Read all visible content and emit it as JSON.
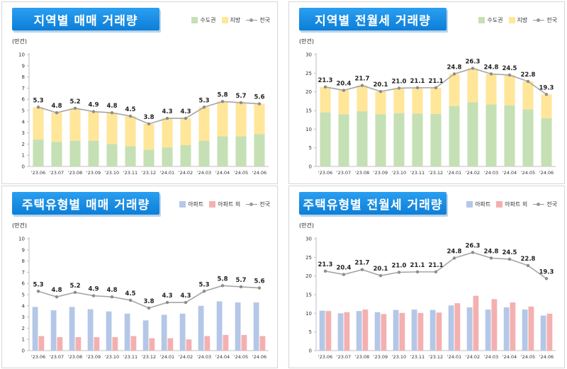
{
  "colors": {
    "metro": "#c5e0b4",
    "region": "#ffe699",
    "apt": "#b4c7e7",
    "nonapt": "#f4b0b0",
    "line": "#a6a6a6"
  },
  "chart_data": [
    {
      "type": "bar",
      "stacked": true,
      "title": "지역별 매매 거래량",
      "unit": "(만건)",
      "categories": [
        "'23.06",
        "'23.07",
        "'23.08",
        "'23.09",
        "'23.10",
        "'23.11",
        "'23.12",
        "'24.01",
        "'24.02",
        "'24.03",
        "'24.04",
        "'24.05",
        "'24.06"
      ],
      "ylim": [
        0,
        10
      ],
      "yticks": [
        "0",
        "1",
        "2",
        "3",
        "4",
        "5",
        "6",
        "7",
        "8",
        "9",
        "10"
      ],
      "series": [
        {
          "name": "수도권",
          "color_key": "metro",
          "values": [
            2.4,
            2.2,
            2.3,
            2.3,
            2.0,
            1.8,
            1.5,
            1.7,
            1.9,
            2.3,
            2.7,
            2.7,
            2.9
          ]
        },
        {
          "name": "지방",
          "color_key": "region",
          "values": [
            2.9,
            2.6,
            2.9,
            2.6,
            2.8,
            2.7,
            2.3,
            2.6,
            2.4,
            3.0,
            3.1,
            3.0,
            2.7
          ]
        }
      ],
      "line": {
        "name": "전국",
        "values": [
          5.3,
          4.8,
          5.2,
          4.9,
          4.8,
          4.5,
          3.8,
          4.3,
          4.3,
          5.3,
          5.8,
          5.7,
          5.6
        ],
        "labels": [
          "5.3",
          "4.8",
          "5.2",
          "4.9",
          "4.8",
          "4.5",
          "3.8",
          "4.3",
          "4.3",
          "5.3",
          "5.8",
          "5.7",
          "5.6"
        ]
      }
    },
    {
      "type": "bar",
      "stacked": true,
      "title": "지역별 전월세 거래량",
      "unit": "(만건)",
      "categories": [
        "'23.06",
        "'23.07",
        "'23.08",
        "'23.09",
        "'23.10",
        "'23.11",
        "'23.12",
        "'24.01",
        "'24.02",
        "'24.03",
        "'24.04",
        "'24.05",
        "'24.06"
      ],
      "ylim": [
        0,
        30
      ],
      "yticks": [
        "0",
        "5",
        "10",
        "15",
        "20",
        "25",
        "30"
      ],
      "series": [
        {
          "name": "수도권",
          "color_key": "metro",
          "values": [
            14.5,
            14.0,
            14.8,
            14.0,
            14.3,
            14.2,
            14.1,
            16.2,
            17.2,
            16.6,
            16.4,
            15.3,
            12.9
          ]
        },
        {
          "name": "지방",
          "color_key": "region",
          "values": [
            6.8,
            6.4,
            6.9,
            6.1,
            6.7,
            6.9,
            7.0,
            8.6,
            9.1,
            8.2,
            8.1,
            7.5,
            6.4
          ]
        }
      ],
      "line": {
        "name": "전국",
        "values": [
          21.3,
          20.4,
          21.7,
          20.1,
          21.0,
          21.1,
          21.1,
          24.8,
          26.3,
          24.8,
          24.5,
          22.8,
          19.3
        ],
        "labels": [
          "21.3",
          "20.4",
          "21.7",
          "20.1",
          "21.0",
          "21.1",
          "21.1",
          "24.8",
          "26.3",
          "24.8",
          "24.5",
          "22.8",
          "19.3"
        ]
      }
    },
    {
      "type": "bar",
      "stacked": false,
      "title": "주택유형별 매매 거래량",
      "unit": "(만건)",
      "categories": [
        "'23.06",
        "'23.07",
        "'23.08",
        "'23.09",
        "'23.10",
        "'23.11",
        "'23.12",
        "'24.01",
        "'24.02",
        "'24.03",
        "'24.04",
        "'24.05",
        "'24.06"
      ],
      "ylim": [
        0,
        10
      ],
      "yticks": [
        "0",
        "1",
        "2",
        "3",
        "4",
        "5",
        "6",
        "7",
        "8",
        "9",
        "10"
      ],
      "series": [
        {
          "name": "아파트",
          "color_key": "apt",
          "values": [
            3.9,
            3.6,
            3.9,
            3.7,
            3.5,
            3.3,
            2.7,
            3.2,
            3.3,
            4.0,
            4.4,
            4.3,
            4.3
          ]
        },
        {
          "name": "아파트 외",
          "color_key": "nonapt",
          "values": [
            1.3,
            1.2,
            1.2,
            1.2,
            1.2,
            1.3,
            1.1,
            1.1,
            1.0,
            1.3,
            1.4,
            1.4,
            1.3
          ]
        }
      ],
      "line": {
        "name": "전국",
        "values": [
          5.3,
          4.8,
          5.2,
          4.9,
          4.8,
          4.5,
          3.8,
          4.3,
          4.3,
          5.3,
          5.8,
          5.7,
          5.6
        ],
        "labels": [
          "5.3",
          "4.8",
          "5.2",
          "4.9",
          "4.8",
          "4.5",
          "3.8",
          "4.3",
          "4.3",
          "5.3",
          "5.8",
          "5.7",
          "5.6"
        ]
      }
    },
    {
      "type": "bar",
      "stacked": false,
      "title": "주택유형별 전월세 거래량",
      "unit": "(만건)",
      "categories": [
        "'23.06",
        "'23.07",
        "'23.08",
        "'23.09",
        "'23.10",
        "'23.11",
        "'23.12",
        "'24.01",
        "'24.02",
        "'24.03",
        "'24.04",
        "'24.05",
        "'24.06"
      ],
      "ylim": [
        0,
        30
      ],
      "yticks": [
        "0",
        "5",
        "10",
        "15",
        "20",
        "25",
        "30"
      ],
      "series": [
        {
          "name": "아파트",
          "color_key": "apt",
          "values": [
            10.7,
            10.0,
            10.6,
            10.3,
            10.9,
            11.0,
            10.9,
            12.1,
            11.6,
            11.0,
            11.6,
            11.0,
            9.4
          ]
        },
        {
          "name": "아파트 외",
          "color_key": "nonapt",
          "values": [
            10.6,
            10.3,
            11.0,
            9.8,
            10.1,
            10.1,
            10.2,
            12.7,
            14.7,
            13.8,
            12.9,
            11.8,
            9.9
          ]
        }
      ],
      "line": {
        "name": "전국",
        "values": [
          21.3,
          20.4,
          21.7,
          20.1,
          21.0,
          21.1,
          21.1,
          24.8,
          26.3,
          24.8,
          24.5,
          22.8,
          19.3
        ],
        "labels": [
          "21.3",
          "20.4",
          "21.7",
          "20.1",
          "21.0",
          "21.1",
          "21.1",
          "24.8",
          "26.3",
          "24.8",
          "24.5",
          "22.8",
          "19.3"
        ]
      }
    }
  ]
}
